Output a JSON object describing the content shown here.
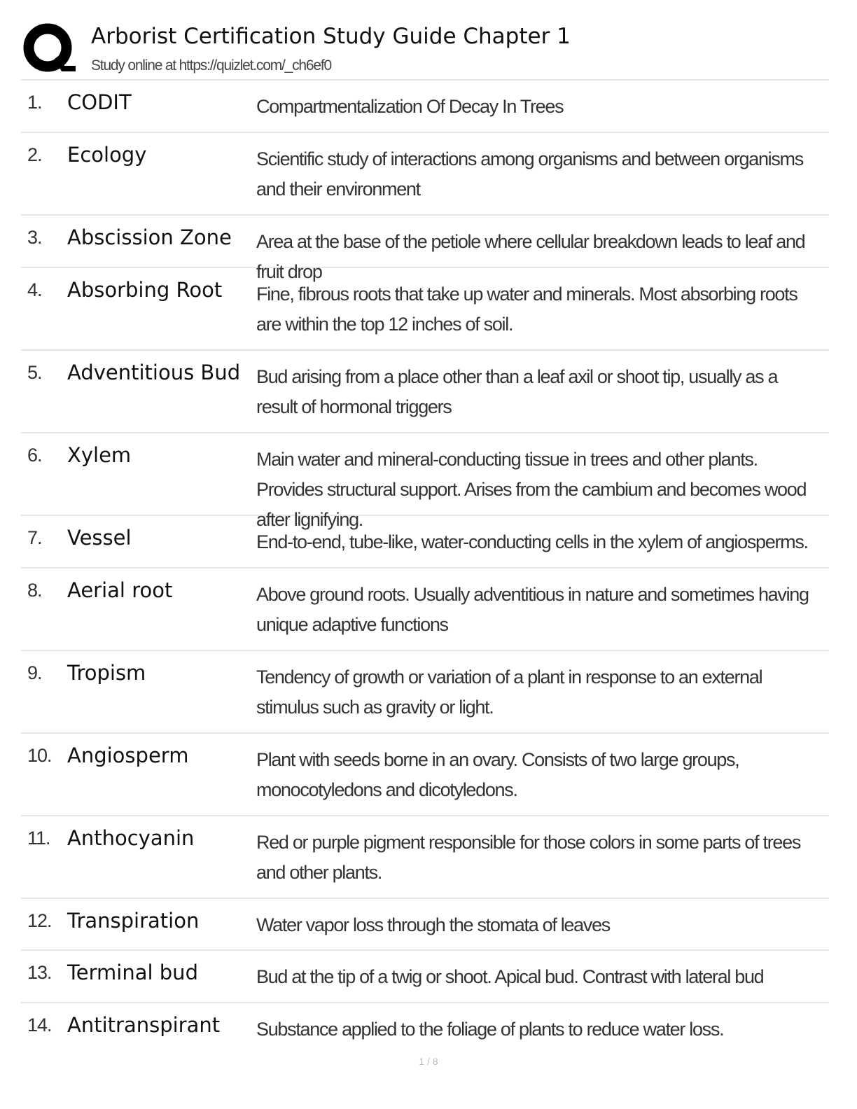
{
  "header": {
    "title": "Arborist Certification Study Guide Chapter 1",
    "subtitle": "Study online at https://quizlet.com/_ch6ef0",
    "logo": "quizlet-q-logo"
  },
  "cards": [
    {
      "num": "1.",
      "term": "CODIT",
      "definition": "Compartmentalization Of Decay In Trees"
    },
    {
      "num": "2.",
      "term": "Ecology",
      "definition": "Scientific study of interactions among organisms and between organisms and their environment"
    },
    {
      "num": "3.",
      "term": "Abscission Zone",
      "definition": "Area at the base of the petiole where cellular breakdown leads to leaf and fruit drop"
    },
    {
      "num": "4.",
      "term": "Absorbing Root",
      "definition": "Fine, fibrous roots that take up water and minerals. Most absorbing roots are within the top 12 inches of soil."
    },
    {
      "num": "5.",
      "term": "Adventitious Bud",
      "definition": "Bud arising from a place other than a leaf axil or shoot tip, usually as a result of hormonal triggers"
    },
    {
      "num": "6.",
      "term": "Xylem",
      "definition": "Main water and mineral-conducting tissue in trees and other plants. Provides structural support. Arises from the cambium and becomes wood after lignifying."
    },
    {
      "num": "7.",
      "term": "Vessel",
      "definition": "End-to-end, tube-like, water-conducting cells in the xylem of angiosperms."
    },
    {
      "num": "8.",
      "term": "Aerial root",
      "definition": "Above ground roots. Usually adventitious in nature and sometimes having unique adaptive functions"
    },
    {
      "num": "9.",
      "term": "Tropism",
      "definition": "Tendency of growth or variation of a plant in response to an external stimulus such as gravity or light."
    },
    {
      "num": "10.",
      "term": "Angiosperm",
      "definition": "Plant with seeds borne in an ovary. Consists of two large groups, monocotyledons and dicotyledons."
    },
    {
      "num": "11.",
      "term": "Anthocyanin",
      "definition": "Red or purple pigment responsible for those colors in some parts of trees and other plants."
    },
    {
      "num": "12.",
      "term": "Transpiration",
      "definition": "Water vapor loss through the stomata of leaves"
    },
    {
      "num": "13.",
      "term": "Terminal bud",
      "definition": "Bud at the tip of a twig or shoot. Apical bud. Contrast with lateral bud"
    },
    {
      "num": "14.",
      "term": "Antitranspirant",
      "definition": "Substance applied to the foliage of plants to reduce water loss."
    }
  ],
  "footer": {
    "page": "1 / 8"
  }
}
